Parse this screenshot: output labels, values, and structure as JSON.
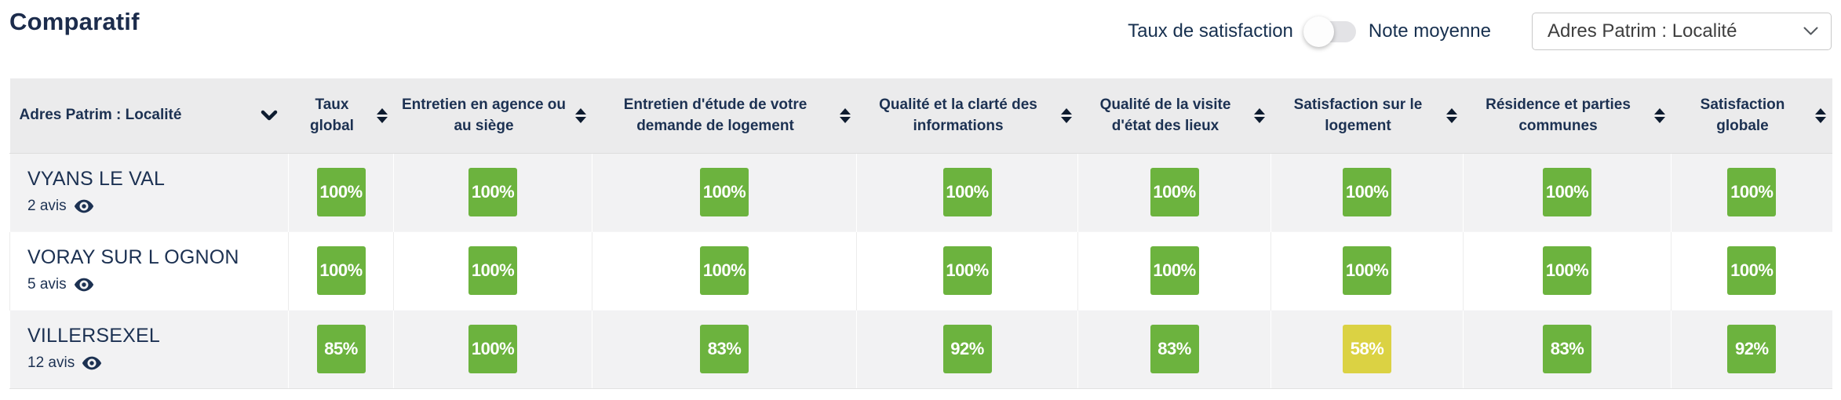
{
  "page": {
    "title": "Comparatif"
  },
  "controls": {
    "satisfaction_label": "Taux de satisfaction",
    "average_label": "Note moyenne",
    "group_select_value": "Adres Patrim : Localité"
  },
  "colors": {
    "green": "#6cb33e",
    "yellow": "#dbd243",
    "navy": "#1c3152",
    "header_bg": "#ebebec",
    "row_alt_bg": "#f2f2f3"
  },
  "table": {
    "columns": [
      {
        "label": "Adres Patrim : Localité",
        "sort": "down"
      },
      {
        "label": "Taux global",
        "sort": "both"
      },
      {
        "label": "Entretien en agence ou au siège",
        "sort": "both"
      },
      {
        "label": "Entretien d'étude de votre demande de logement",
        "sort": "both"
      },
      {
        "label": "Qualité et la clarté des informations",
        "sort": "both"
      },
      {
        "label": "Qualité de la visite d'état des lieux",
        "sort": "both"
      },
      {
        "label": "Satisfaction sur le logement",
        "sort": "both"
      },
      {
        "label": "Résidence et parties communes",
        "sort": "both"
      },
      {
        "label": "Satisfaction globale",
        "sort": "both"
      }
    ],
    "rows": [
      {
        "name": "VYANS LE VAL",
        "reviews": "2 avis",
        "cells": [
          {
            "text": "100%",
            "level": "green"
          },
          {
            "text": "100%",
            "level": "green"
          },
          {
            "text": "100%",
            "level": "green"
          },
          {
            "text": "100%",
            "level": "green"
          },
          {
            "text": "100%",
            "level": "green"
          },
          {
            "text": "100%",
            "level": "green"
          },
          {
            "text": "100%",
            "level": "green"
          },
          {
            "text": "100%",
            "level": "green"
          }
        ]
      },
      {
        "name": "VORAY SUR L OGNON",
        "reviews": "5 avis",
        "cells": [
          {
            "text": "100%",
            "level": "green"
          },
          {
            "text": "100%",
            "level": "green"
          },
          {
            "text": "100%",
            "level": "green"
          },
          {
            "text": "100%",
            "level": "green"
          },
          {
            "text": "100%",
            "level": "green"
          },
          {
            "text": "100%",
            "level": "green"
          },
          {
            "text": "100%",
            "level": "green"
          },
          {
            "text": "100%",
            "level": "green"
          }
        ]
      },
      {
        "name": "VILLERSEXEL",
        "reviews": "12 avis",
        "cells": [
          {
            "text": "85%",
            "level": "green"
          },
          {
            "text": "100%",
            "level": "green"
          },
          {
            "text": "83%",
            "level": "green"
          },
          {
            "text": "92%",
            "level": "green"
          },
          {
            "text": "83%",
            "level": "green"
          },
          {
            "text": "58%",
            "level": "yellow"
          },
          {
            "text": "83%",
            "level": "green"
          },
          {
            "text": "92%",
            "level": "green"
          }
        ]
      }
    ]
  }
}
